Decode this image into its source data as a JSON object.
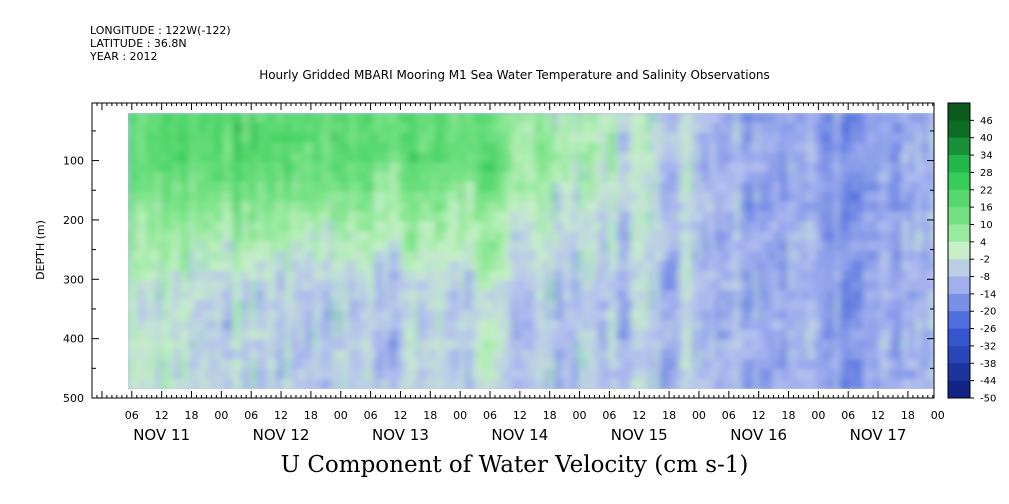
{
  "meta": {
    "longitude": "LONGITUDE : 122W(-122)",
    "latitude": "LATITUDE : 36.8N",
    "year": "YEAR : 2012"
  },
  "chart_data": {
    "type": "heatmap",
    "title": "Hourly Gridded MBARI Mooring M1 Sea Water Temperature and Salinity Observations",
    "subtitle": "U Component of Water Velocity (cm s-1)",
    "ylabel": "DEPTH (m)",
    "ylim": [
      500,
      0
    ],
    "y_ticks": [
      100,
      200,
      300,
      400,
      500
    ],
    "x_hour_labels": [
      "06",
      "12",
      "18",
      "00",
      "06",
      "12",
      "18",
      "00",
      "06",
      "12",
      "18",
      "00",
      "06",
      "12",
      "18",
      "00",
      "06",
      "12",
      "18",
      "00",
      "06",
      "12",
      "18",
      "00",
      "06",
      "12",
      "18",
      "00"
    ],
    "x_day_labels": [
      "NOV 11",
      "NOV 12",
      "NOV 13",
      "NOV 14",
      "NOV 15",
      "NOV 16",
      "NOV 17"
    ],
    "colorbar": {
      "levels": [
        -50,
        -44,
        -38,
        -32,
        -26,
        -20,
        -14,
        -8,
        -2,
        4,
        10,
        16,
        22,
        28,
        34,
        40,
        46
      ],
      "labels": [
        "46",
        "40",
        "34",
        "28",
        "22",
        "16",
        "10",
        "4",
        "-2",
        "-8",
        "-14",
        "-20",
        "-26",
        "-32",
        "-38",
        "-44",
        "-50"
      ],
      "colors": {
        "negative_strong": "#0a1a7a",
        "negative_mid": "#3c5fdc",
        "negative_weak": "#b4bff0",
        "near_zero": "#c8f0c8",
        "positive_weak": "#82e68c",
        "positive_mid": "#28c850",
        "positive_strong": "#0a5a1e"
      }
    },
    "field_summary": {
      "description_days": [
        "NOV 11",
        "NOV 12",
        "NOV 13",
        "NOV 14",
        "NOV 15",
        "NOV 16",
        "NOV 17"
      ],
      "upper_layer_mean_u_by_day": [
        18,
        20,
        18,
        16,
        4,
        -6,
        -14
      ],
      "lower_layer_mean_u_by_day": [
        4,
        -4,
        -6,
        -4,
        -8,
        -6,
        -12
      ]
    }
  }
}
